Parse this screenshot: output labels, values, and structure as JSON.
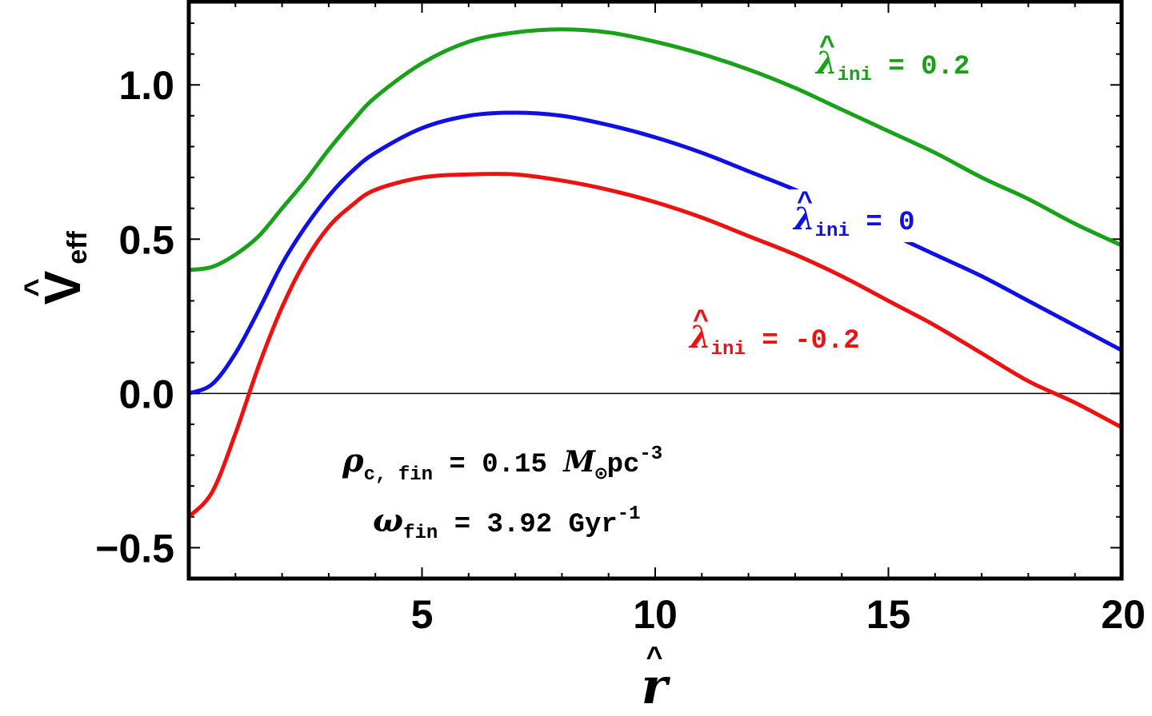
{
  "chart_data": {
    "type": "line",
    "xlabel": "r",
    "ylabel": "V",
    "ylabel_sub": "eff",
    "xlim": [
      0,
      20
    ],
    "ylim": [
      -0.6,
      1.27
    ],
    "x_ticks": [
      5,
      10,
      15,
      20
    ],
    "x_tick_labels": [
      "5",
      "10",
      "15",
      "20"
    ],
    "y_ticks": [
      -0.5,
      0.0,
      0.5,
      1.0
    ],
    "y_tick_labels": [
      "-0.5",
      "0.0",
      "0.5",
      "1.0"
    ],
    "grid": false,
    "zero_line": true,
    "series": [
      {
        "name": "λ_ini = 0.2",
        "label_symbol": "λ",
        "label_sub": "ini",
        "label_value": " = 0.2",
        "color": "#1aa11a",
        "x": [
          0,
          0.5,
          1,
          1.5,
          2,
          2.5,
          3,
          3.5,
          4,
          5,
          6,
          7,
          8,
          9,
          10,
          11,
          12,
          13,
          14,
          15,
          16,
          17,
          18,
          19,
          20
        ],
        "y": [
          0.4,
          0.41,
          0.45,
          0.51,
          0.6,
          0.69,
          0.79,
          0.88,
          0.96,
          1.07,
          1.14,
          1.17,
          1.18,
          1.17,
          1.14,
          1.1,
          1.05,
          0.99,
          0.92,
          0.85,
          0.78,
          0.7,
          0.63,
          0.55,
          0.48
        ]
      },
      {
        "name": "λ_ini = 0",
        "label_symbol": "λ",
        "label_sub": "ini",
        "label_value": " = 0",
        "color": "#1010e6",
        "x": [
          0,
          0.5,
          1,
          1.5,
          2,
          2.5,
          3,
          3.5,
          4,
          5,
          6,
          7,
          8,
          9,
          10,
          11,
          12,
          13,
          14,
          15,
          16,
          17,
          18,
          19,
          20
        ],
        "y": [
          0.0,
          0.03,
          0.13,
          0.27,
          0.42,
          0.54,
          0.64,
          0.72,
          0.78,
          0.86,
          0.9,
          0.91,
          0.9,
          0.87,
          0.83,
          0.78,
          0.72,
          0.66,
          0.59,
          0.52,
          0.45,
          0.38,
          0.3,
          0.22,
          0.14
        ]
      },
      {
        "name": "λ_ini = -0.2",
        "label_symbol": "λ",
        "label_sub": "ini",
        "label_value": " = -0.2",
        "color": "#ee1111",
        "x": [
          0,
          0.5,
          1,
          1.5,
          2,
          2.5,
          3,
          3.5,
          4,
          5,
          6,
          7,
          8,
          9,
          10,
          11,
          12,
          13,
          14,
          15,
          16,
          17,
          18,
          19,
          20
        ],
        "y": [
          -0.4,
          -0.32,
          -0.13,
          0.09,
          0.28,
          0.43,
          0.54,
          0.61,
          0.66,
          0.7,
          0.71,
          0.71,
          0.69,
          0.66,
          0.62,
          0.57,
          0.51,
          0.45,
          0.38,
          0.3,
          0.22,
          0.13,
          0.04,
          -0.03,
          -0.11
        ]
      }
    ],
    "annotations": {
      "rho": {
        "symbol": "ρ",
        "sub": "c, fin",
        "text": " = 0.15 ",
        "unit_symbol": "M",
        "unit_sub": "⊙",
        "unit_text": "pc",
        "unit_sup": "-3"
      },
      "omega": {
        "symbol": "ω",
        "sub": "fin",
        "text": " = 3.92 Gyr",
        "sup": "-1"
      }
    }
  }
}
